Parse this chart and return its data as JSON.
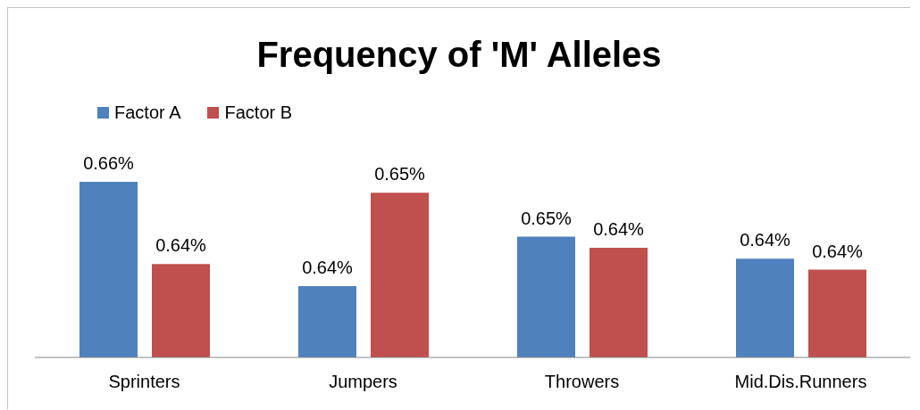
{
  "chart_data": {
    "type": "bar",
    "title": "Frequency of 'M' Alleles",
    "categories": [
      "Sprinters",
      "Jumpers",
      "Throwers",
      "Mid.Dis.Runners"
    ],
    "legend": "top left",
    "ylim": [
      0.624,
      0.656
    ],
    "series": [
      {
        "name": "Factor A",
        "color": "#4f81bd",
        "values": [
          0.656,
          0.637,
          0.646,
          0.642
        ],
        "value_labels": [
          "0.66%",
          "0.64%",
          "0.65%",
          "0.64%"
        ]
      },
      {
        "name": "Factor B",
        "color": "#c0504d",
        "values": [
          0.641,
          0.654,
          0.644,
          0.64
        ],
        "value_labels": [
          "0.64%",
          "0.65%",
          "0.64%",
          "0.64%"
        ]
      }
    ]
  }
}
